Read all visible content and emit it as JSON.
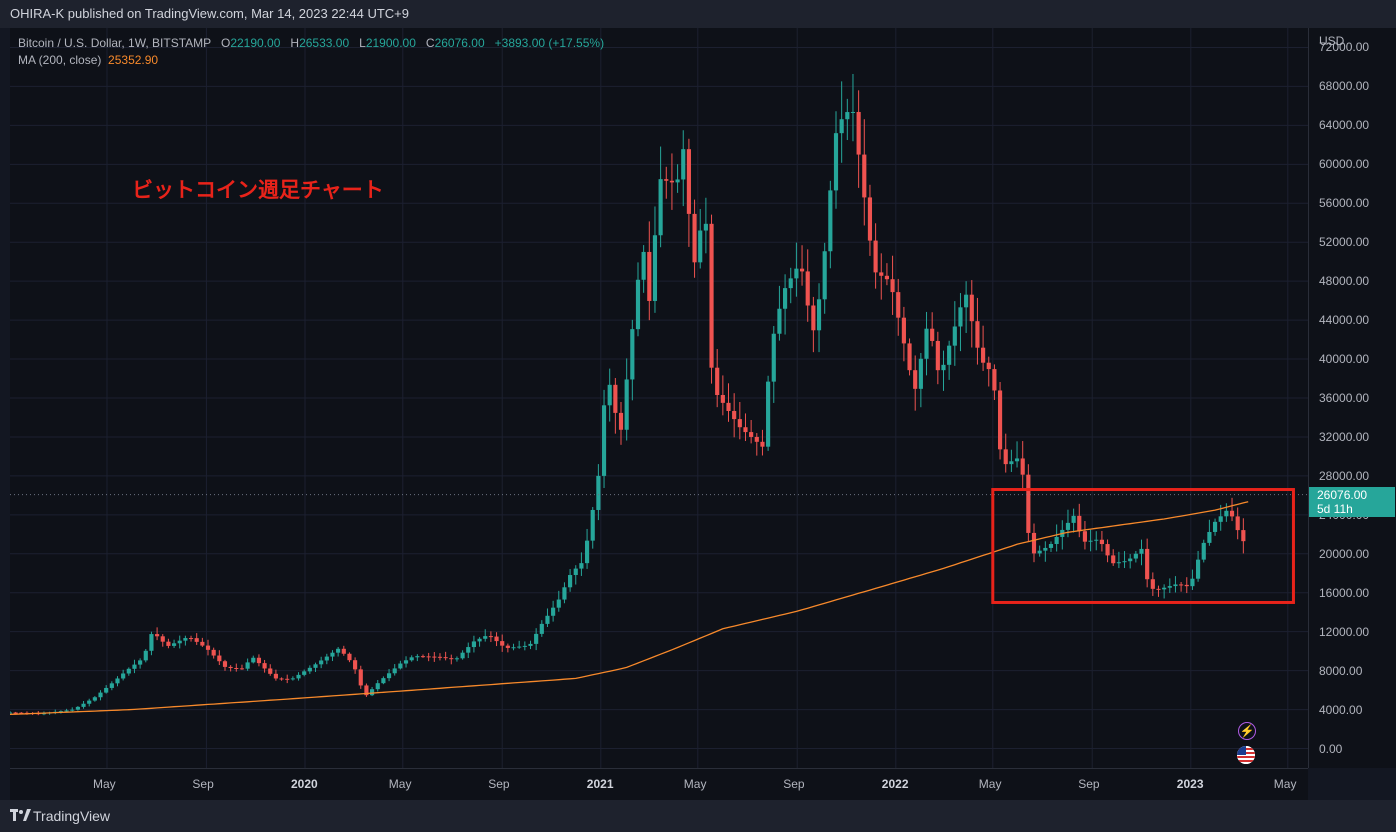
{
  "header": {
    "publisher_text": "OHIRA-K published on TradingView.com, Mar 14, 2023 22:44 UTC+9"
  },
  "legend": {
    "symbol": "Bitcoin / U.S. Dollar, 1W, BITSTAMP",
    "o_label": "O",
    "o_value": "22190.00",
    "h_label": "H",
    "h_value": "26533.00",
    "l_label": "L",
    "l_value": "21900.00",
    "c_label": "C",
    "c_value": "26076.00",
    "change": "+3893.00 (+17.55%)",
    "ma_label": "MA (200, close)",
    "ma_value": "25352.90"
  },
  "annotation": {
    "text": "ビットコイン週足チャート"
  },
  "price_axis": {
    "currency": "USD",
    "last_price": "26076.00",
    "countdown": "5d 11h"
  },
  "footer": {
    "brand": "TradingView"
  },
  "icons": {
    "lightning": "lightning-icon",
    "flag": "us-flag-icon"
  },
  "colors": {
    "up": "#26a69a",
    "down": "#ef5350",
    "ma": "#f7892b",
    "highlight": "#e8231a"
  },
  "chart_data": {
    "type": "candlestick",
    "symbol": "Bitcoin / U.S. Dollar",
    "interval": "1W",
    "ylim": [
      -2000,
      74000
    ],
    "y_ticks": [
      0,
      4000,
      8000,
      12000,
      16000,
      20000,
      24000,
      28000,
      32000,
      36000,
      40000,
      44000,
      48000,
      52000,
      56000,
      60000,
      64000,
      68000,
      72000
    ],
    "y_tick_labels": [
      "0.00",
      "4000.00",
      "8000.00",
      "12000.00",
      "16000.00",
      "20000.00",
      "24000.00",
      "28000.00",
      "32000.00",
      "36000.00",
      "40000.00",
      "44000.00",
      "48000.00",
      "52000.00",
      "56000.00",
      "60000.00",
      "64000.00",
      "68000.00",
      "72000.00"
    ],
    "x_range": [
      "2019-01-01",
      "2023-05-26"
    ],
    "x_ticks": [
      {
        "label": "May",
        "date": "2019-05-01",
        "year": false
      },
      {
        "label": "Sep",
        "date": "2019-09-01",
        "year": false
      },
      {
        "label": "2020",
        "date": "2020-01-01",
        "year": true
      },
      {
        "label": "May",
        "date": "2020-05-01",
        "year": false
      },
      {
        "label": "Sep",
        "date": "2020-09-01",
        "year": false
      },
      {
        "label": "2021",
        "date": "2021-01-01",
        "year": true
      },
      {
        "label": "May",
        "date": "2021-05-01",
        "year": false
      },
      {
        "label": "Sep",
        "date": "2021-09-01",
        "year": false
      },
      {
        "label": "2022",
        "date": "2022-01-01",
        "year": true
      },
      {
        "label": "May",
        "date": "2022-05-01",
        "year": false
      },
      {
        "label": "Sep",
        "date": "2022-09-01",
        "year": false
      },
      {
        "label": "2023",
        "date": "2023-01-01",
        "year": true
      },
      {
        "label": "May",
        "date": "2023-05-01",
        "year": false
      }
    ],
    "close_path": [
      [
        "2019-01-01",
        3700
      ],
      [
        "2019-02-10",
        3600
      ],
      [
        "2019-03-20",
        4000
      ],
      [
        "2019-04-15",
        5200
      ],
      [
        "2019-05-10",
        6900
      ],
      [
        "2019-05-25",
        8000
      ],
      [
        "2019-06-15",
        9300
      ],
      [
        "2019-06-26",
        12000
      ],
      [
        "2019-07-15",
        10500
      ],
      [
        "2019-08-10",
        11500
      ],
      [
        "2019-09-01",
        10300
      ],
      [
        "2019-09-25",
        8300
      ],
      [
        "2019-10-15",
        8200
      ],
      [
        "2019-10-28",
        9400
      ],
      [
        "2019-11-25",
        7200
      ],
      [
        "2019-12-15",
        7100
      ],
      [
        "2020-01-15",
        8700
      ],
      [
        "2020-02-12",
        10300
      ],
      [
        "2020-03-01",
        8600
      ],
      [
        "2020-03-15",
        5300
      ],
      [
        "2020-04-01",
        6800
      ],
      [
        "2020-04-29",
        8800
      ],
      [
        "2020-05-15",
        9500
      ],
      [
        "2020-06-15",
        9400
      ],
      [
        "2020-07-05",
        9100
      ],
      [
        "2020-07-28",
        11000
      ],
      [
        "2020-08-15",
        11700
      ],
      [
        "2020-09-05",
        10300
      ],
      [
        "2020-10-05",
        10600
      ],
      [
        "2020-10-20",
        12800
      ],
      [
        "2020-11-10",
        15300
      ],
      [
        "2020-11-25",
        18000
      ],
      [
        "2020-12-10",
        19200
      ],
      [
        "2020-12-20",
        23500
      ],
      [
        "2020-12-31",
        29000
      ],
      [
        "2021-01-08",
        39000
      ],
      [
        "2021-01-25",
        32000
      ],
      [
        "2021-02-15",
        47500
      ],
      [
        "2021-02-22",
        52000
      ],
      [
        "2021-03-01",
        45000
      ],
      [
        "2021-03-15",
        58500
      ],
      [
        "2021-04-05",
        58000
      ],
      [
        "2021-04-14",
        62000
      ],
      [
        "2021-04-25",
        49000
      ],
      [
        "2021-05-10",
        56000
      ],
      [
        "2021-05-19",
        37000
      ],
      [
        "2021-06-01",
        35500
      ],
      [
        "2021-06-22",
        33000
      ],
      [
        "2021-07-20",
        31000
      ],
      [
        "2021-07-31",
        41500
      ],
      [
        "2021-08-15",
        47000
      ],
      [
        "2021-09-05",
        50000
      ],
      [
        "2021-09-20",
        42500
      ],
      [
        "2021-10-01",
        47500
      ],
      [
        "2021-10-15",
        60000
      ],
      [
        "2021-10-20",
        64000
      ],
      [
        "2021-11-08",
        66000
      ],
      [
        "2021-11-20",
        58500
      ],
      [
        "2021-12-05",
        49000
      ],
      [
        "2021-12-25",
        48000
      ],
      [
        "2022-01-10",
        42000
      ],
      [
        "2022-01-24",
        36500
      ],
      [
        "2022-02-10",
        44000
      ],
      [
        "2022-02-24",
        38000
      ],
      [
        "2022-03-28",
        47000
      ],
      [
        "2022-04-15",
        40000
      ],
      [
        "2022-05-01",
        38500
      ],
      [
        "2022-05-12",
        29000
      ],
      [
        "2022-06-05",
        30000
      ],
      [
        "2022-06-13",
        22500
      ],
      [
        "2022-06-20",
        20000
      ],
      [
        "2022-07-10",
        20800
      ],
      [
        "2022-08-10",
        24000
      ],
      [
        "2022-08-20",
        21200
      ],
      [
        "2022-09-10",
        21500
      ],
      [
        "2022-09-25",
        19000
      ],
      [
        "2022-10-15",
        19300
      ],
      [
        "2022-11-01",
        20500
      ],
      [
        "2022-11-10",
        16500
      ],
      [
        "2022-11-20",
        16300
      ],
      [
        "2022-12-15",
        16900
      ],
      [
        "2022-12-31",
        16600
      ],
      [
        "2023-01-15",
        20800
      ],
      [
        "2023-01-30",
        23200
      ],
      [
        "2023-02-15",
        24500
      ],
      [
        "2023-02-25",
        23400
      ],
      [
        "2023-03-06",
        20500
      ],
      [
        "2023-03-13",
        26076
      ]
    ],
    "ma_path": [
      [
        "2019-01-01",
        3500
      ],
      [
        "2019-06-01",
        4000
      ],
      [
        "2020-01-01",
        5200
      ],
      [
        "2020-06-01",
        6100
      ],
      [
        "2020-12-01",
        7200
      ],
      [
        "2021-02-01",
        8300
      ],
      [
        "2021-04-01",
        10200
      ],
      [
        "2021-06-01",
        12300
      ],
      [
        "2021-09-01",
        14100
      ],
      [
        "2021-12-01",
        16300
      ],
      [
        "2022-03-01",
        18500
      ],
      [
        "2022-06-01",
        21000
      ],
      [
        "2022-08-01",
        22200
      ],
      [
        "2022-10-01",
        22900
      ],
      [
        "2022-12-01",
        23600
      ],
      [
        "2023-02-01",
        24500
      ],
      [
        "2023-03-13",
        25352.9
      ]
    ],
    "last_close": 26076,
    "ma_last": 25352.9,
    "highlight_box": {
      "x0": "2022-05-01",
      "x1": "2023-05-08",
      "y0": 15000,
      "y1": 26600
    },
    "grid": true
  }
}
